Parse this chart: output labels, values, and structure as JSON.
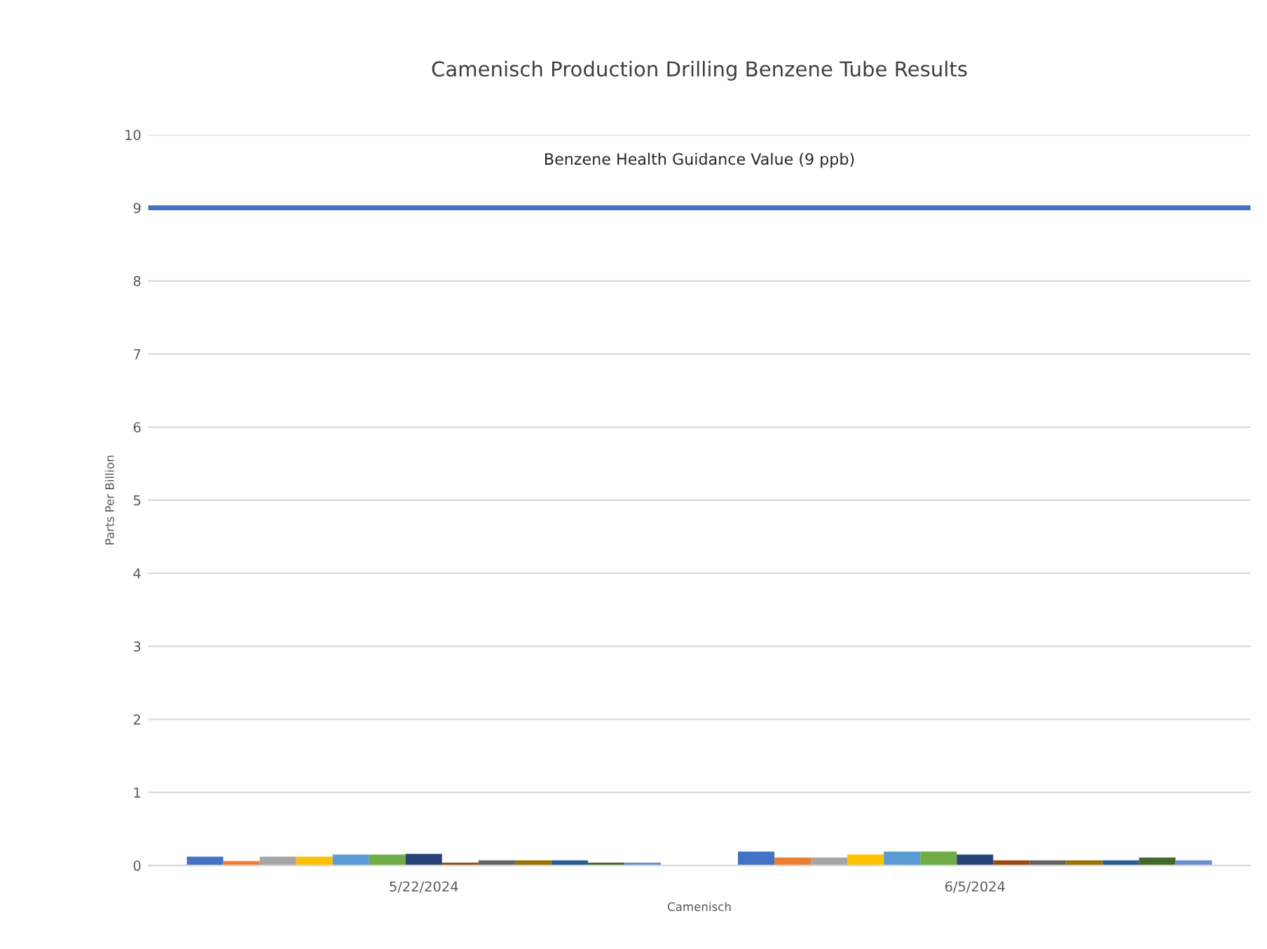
{
  "chart_data": {
    "type": "bar",
    "title": "Camenisch Production Drilling Benzene Tube Results",
    "xlabel": "Camenisch",
    "ylabel": "Parts Per Billion",
    "categories": [
      "5/22/2024",
      "6/5/2024"
    ],
    "series": [
      {
        "color": "#4472c4",
        "values": [
          0.12,
          0.19
        ]
      },
      {
        "color": "#ed7d31",
        "values": [
          0.06,
          0.11
        ]
      },
      {
        "color": "#a5a5a5",
        "values": [
          0.12,
          0.11
        ]
      },
      {
        "color": "#ffc000",
        "values": [
          0.12,
          0.15
        ]
      },
      {
        "color": "#5b9bd5",
        "values": [
          0.15,
          0.19
        ]
      },
      {
        "color": "#70ad47",
        "values": [
          0.15,
          0.19
        ]
      },
      {
        "color": "#264478",
        "values": [
          0.16,
          0.15
        ]
      },
      {
        "color": "#9e480e",
        "values": [
          0.04,
          0.07
        ]
      },
      {
        "color": "#636363",
        "values": [
          0.07,
          0.07
        ]
      },
      {
        "color": "#997300",
        "values": [
          0.07,
          0.07
        ]
      },
      {
        "color": "#255e91",
        "values": [
          0.07,
          0.07
        ]
      },
      {
        "color": "#43682b",
        "values": [
          0.04,
          0.11
        ]
      },
      {
        "color": "#698ed0",
        "values": [
          0.04,
          0.07
        ]
      }
    ],
    "ylim": [
      0,
      10
    ],
    "yticks": [
      0,
      1,
      2,
      3,
      4,
      5,
      6,
      7,
      8,
      9,
      10
    ],
    "grid": "y",
    "legend": false,
    "ref_lines": [
      {
        "axis": "y",
        "value": 9,
        "label": "Benzene Health Guidance Value (9 ppb)",
        "color": "#4472c4"
      }
    ]
  }
}
